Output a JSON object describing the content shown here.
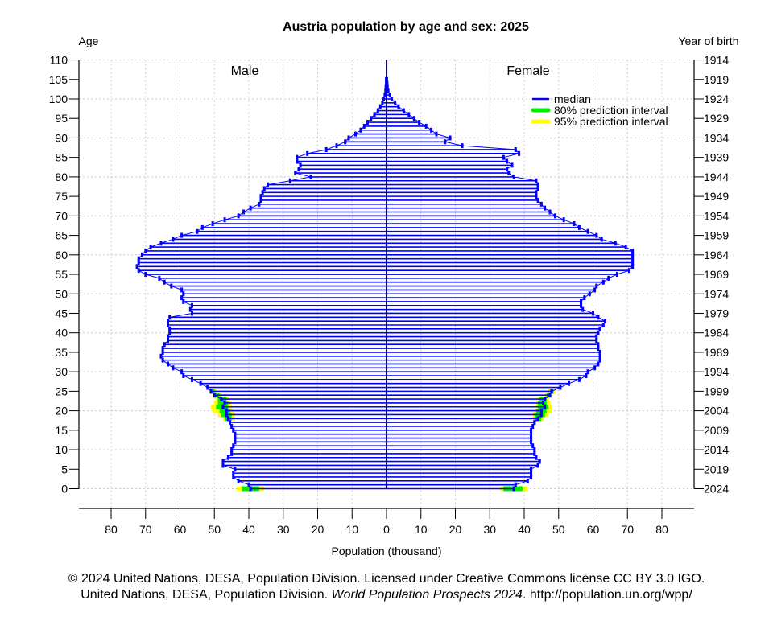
{
  "chart_data": {
    "type": "bar",
    "subtype": "population-pyramid",
    "title": "Austria population by age and sex: 2025",
    "xlabel": "Population (thousand)",
    "ylabel_left": "Age",
    "ylabel_right": "Year of birth",
    "xlim": [
      -88,
      88
    ],
    "ylim": [
      0,
      110
    ],
    "grid": true,
    "x_ticks": [
      80,
      70,
      60,
      50,
      40,
      30,
      20,
      10,
      0,
      10,
      20,
      30,
      40,
      50,
      60,
      70,
      80
    ],
    "y_ticks_left": [
      110,
      105,
      100,
      95,
      90,
      85,
      80,
      75,
      70,
      65,
      60,
      55,
      50,
      45,
      40,
      35,
      30,
      25,
      20,
      15,
      10,
      5,
      0
    ],
    "y_ticks_right": [
      1914,
      1919,
      1924,
      1929,
      1934,
      1939,
      1944,
      1949,
      1954,
      1959,
      1964,
      1969,
      1974,
      1979,
      1984,
      1989,
      1994,
      1999,
      2004,
      2009,
      2014,
      2019,
      2024
    ],
    "panel_labels": {
      "left": "Male",
      "right": "Female"
    },
    "legend": {
      "position": "top-right",
      "entries": [
        {
          "label": "median",
          "color": "#0000ff"
        },
        {
          "label": "80% prediction interval",
          "color": "#00ee00"
        },
        {
          "label": "95% prediction interval",
          "color": "#ffff00"
        }
      ]
    },
    "ages": [
      0,
      1,
      2,
      3,
      4,
      5,
      6,
      7,
      8,
      9,
      10,
      11,
      12,
      13,
      14,
      15,
      16,
      17,
      18,
      19,
      20,
      21,
      22,
      23,
      24,
      25,
      26,
      27,
      28,
      29,
      30,
      31,
      32,
      33,
      34,
      35,
      36,
      37,
      38,
      39,
      40,
      41,
      42,
      43,
      44,
      45,
      46,
      47,
      48,
      49,
      50,
      51,
      52,
      53,
      54,
      55,
      56,
      57,
      58,
      59,
      60,
      61,
      62,
      63,
      64,
      65,
      66,
      67,
      68,
      69,
      70,
      71,
      72,
      73,
      74,
      75,
      76,
      77,
      78,
      79,
      80,
      81,
      82,
      83,
      84,
      85,
      86,
      87,
      88,
      89,
      90,
      91,
      92,
      93,
      94,
      95,
      96,
      97,
      98,
      99,
      100,
      101,
      102,
      103,
      104,
      105,
      106,
      107,
      108,
      109,
      110
    ],
    "series": [
      {
        "name": "Male (median)",
        "color": "#0000ff",
        "values": [
          39.5,
          40.0,
          43.0,
          44.5,
          44.5,
          44.0,
          47.5,
          47.5,
          46.0,
          45.0,
          45.0,
          44.5,
          44.0,
          44.0,
          44.0,
          44.5,
          45.0,
          45.5,
          46.0,
          46.5,
          46.5,
          47.5,
          47.0,
          48.0,
          50.0,
          51.0,
          52.0,
          54.0,
          56.5,
          59.0,
          59.5,
          62.0,
          63.5,
          65.0,
          65.5,
          65.0,
          65.0,
          64.5,
          63.5,
          63.5,
          63.0,
          63.0,
          63.5,
          63.5,
          63.0,
          56.5,
          57.0,
          56.5,
          59.0,
          59.5,
          59.0,
          59.5,
          62.5,
          64.5,
          66.0,
          70.0,
          72.0,
          72.5,
          72.0,
          72.0,
          71.0,
          70.0,
          68.5,
          65.5,
          62.0,
          59.5,
          55.0,
          53.5,
          50.5,
          47.0,
          43.0,
          41.5,
          39.5,
          37.0,
          36.5,
          36.5,
          36.0,
          35.5,
          34.5,
          28.0,
          22.0,
          26.5,
          25.5,
          25.0,
          26.0,
          26.0,
          23.0,
          17.5,
          14.5,
          12.0,
          11.0,
          9.0,
          7.5,
          6.5,
          5.5,
          4.5,
          3.5,
          2.5,
          1.8,
          1.2,
          0.8,
          0.5,
          0.3,
          0.2,
          0.1,
          0.1,
          0.0,
          0.0,
          0.0,
          0.0,
          0.0
        ]
      },
      {
        "name": "Female (median)",
        "color": "#0000ff",
        "values": [
          37.0,
          37.5,
          41.0,
          42.0,
          42.0,
          42.0,
          44.0,
          44.5,
          43.5,
          43.0,
          43.0,
          42.5,
          42.0,
          42.0,
          42.0,
          42.0,
          42.5,
          43.0,
          44.0,
          45.0,
          45.0,
          46.0,
          45.5,
          46.0,
          47.5,
          48.0,
          50.5,
          53.0,
          56.0,
          58.0,
          58.5,
          60.5,
          61.5,
          62.0,
          62.0,
          62.0,
          61.5,
          61.5,
          61.0,
          61.0,
          61.5,
          62.0,
          63.0,
          63.5,
          61.5,
          60.0,
          57.0,
          56.5,
          56.5,
          57.5,
          59.0,
          60.5,
          61.0,
          63.0,
          64.5,
          67.0,
          70.5,
          71.5,
          71.5,
          71.5,
          71.5,
          71.5,
          69.5,
          66.5,
          62.5,
          61.0,
          58.5,
          56.0,
          54.5,
          51.5,
          49.0,
          47.5,
          46.0,
          45.0,
          44.0,
          43.5,
          43.5,
          44.0,
          44.0,
          43.5,
          37.0,
          35.5,
          35.0,
          36.5,
          35.0,
          34.0,
          38.5,
          37.5,
          22.0,
          17.0,
          18.5,
          14.5,
          13.0,
          11.5,
          9.5,
          8.0,
          6.5,
          5.0,
          3.5,
          2.5,
          1.5,
          1.0,
          0.5,
          0.3,
          0.2,
          0.1,
          0.0,
          0.0,
          0.0,
          0.0,
          0.0
        ]
      }
    ],
    "prediction_intervals": {
      "note": "Intervals visible only at ages 0 and ~18-25",
      "male": {
        "ages": [
          0,
          18,
          19,
          20,
          21,
          22,
          23,
          24,
          25
        ],
        "pi80": [
          [
            37.0,
            42.0
          ],
          [
            45.0,
            47.0
          ],
          [
            45.0,
            48.0
          ],
          [
            45.5,
            48.5
          ],
          [
            46.0,
            49.5
          ],
          [
            46.0,
            49.0
          ],
          [
            46.5,
            49.0
          ],
          [
            48.5,
            50.0
          ],
          [
            50.0,
            51.0
          ]
        ],
        "pi95": [
          [
            35.5,
            43.5
          ],
          [
            44.0,
            47.5
          ],
          [
            44.0,
            49.0
          ],
          [
            44.5,
            50.5
          ],
          [
            45.0,
            51.0
          ],
          [
            45.0,
            50.0
          ],
          [
            46.0,
            49.5
          ],
          [
            48.0,
            50.5
          ],
          [
            49.5,
            51.5
          ]
        ]
      },
      "female": {
        "ages": [
          0,
          18,
          19,
          20,
          21,
          22,
          23,
          24,
          25
        ],
        "pi80": [
          [
            34.0,
            39.5
          ],
          [
            43.0,
            45.0
          ],
          [
            43.0,
            46.0
          ],
          [
            43.5,
            46.5
          ],
          [
            44.0,
            47.0
          ],
          [
            44.0,
            46.5
          ],
          [
            44.5,
            46.5
          ],
          [
            46.5,
            47.5
          ],
          [
            47.5,
            48.5
          ]
        ],
        "pi95": [
          [
            33.0,
            41.0
          ],
          [
            42.5,
            45.5
          ],
          [
            42.5,
            47.0
          ],
          [
            43.0,
            48.0
          ],
          [
            43.5,
            48.0
          ],
          [
            43.5,
            47.5
          ],
          [
            44.0,
            47.0
          ],
          [
            46.0,
            48.0
          ],
          [
            47.0,
            49.0
          ]
        ]
      }
    }
  },
  "footer": {
    "line1": "© 2024 United Nations, DESA, Population Division. Licensed under Creative Commons license CC BY 3.0 IGO.",
    "line2_prefix": "United Nations, DESA, Population Division. ",
    "line2_italic": "World Population Prospects 2024",
    "line2_suffix": ". http://population.un.org/wpp/"
  }
}
